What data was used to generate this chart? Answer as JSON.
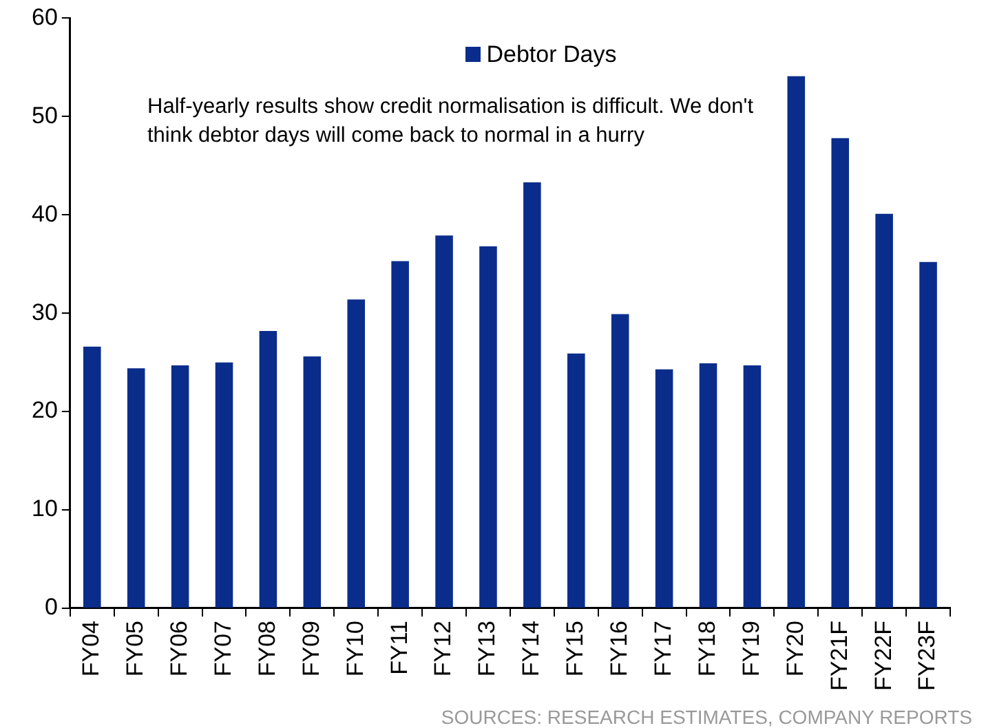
{
  "chart_data": {
    "type": "bar",
    "categories": [
      "FY04",
      "FY05",
      "FY06",
      "FY07",
      "FY08",
      "FY09",
      "FY10",
      "FY11",
      "FY12",
      "FY13",
      "FY14",
      "FY15",
      "FY16",
      "FY17",
      "FY18",
      "FY19",
      "FY20",
      "FY21F",
      "FY22F",
      "FY23F"
    ],
    "series": [
      {
        "name": "Debtor Days",
        "color": "#0a2d8c",
        "values": [
          26.6,
          24.4,
          24.7,
          25.0,
          28.2,
          25.6,
          31.4,
          35.3,
          37.9,
          36.8,
          43.3,
          25.9,
          29.9,
          24.3,
          24.9,
          24.7,
          54.1,
          47.8,
          40.1,
          35.2
        ]
      }
    ],
    "ylim": [
      0,
      60
    ],
    "yticks": [
      0,
      10,
      20,
      30,
      40,
      50,
      60
    ],
    "grid": false,
    "legend": "top",
    "annotations": [
      "Half-yearly results show credit normalisation is difficult. We don't think debtor days will come back to normal in a hurry",
      "SOURCES: RESEARCH ESTIMATES, COMPANY REPORTS"
    ]
  }
}
